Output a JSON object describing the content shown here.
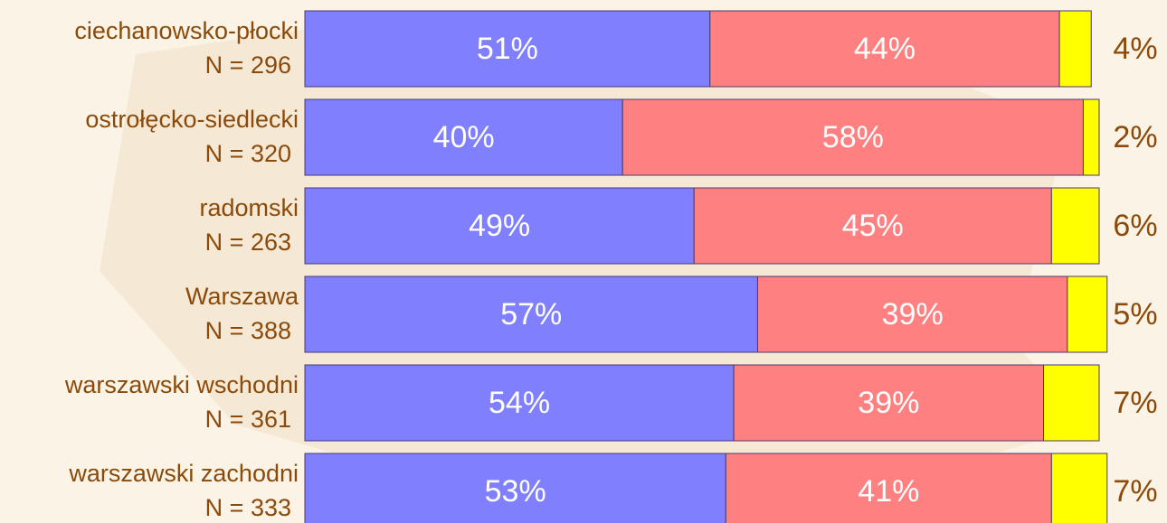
{
  "chart_data": {
    "type": "stacked-bar-horizontal",
    "categories": [
      [
        "ciechanowsko-płocki",
        "N = 296"
      ],
      [
        "ostrołęcko-siedlecki",
        "N = 320"
      ],
      [
        "radomski",
        "N = 263"
      ],
      [
        "Warszawa",
        "N = 388"
      ],
      [
        "warszawski wschodni",
        "N = 361"
      ],
      [
        "warszawski zachodni",
        "N = 333"
      ]
    ],
    "series": [
      {
        "color": "#8080ff",
        "values": [
          51,
          40,
          49,
          57,
          54,
          53
        ],
        "value_labels": [
          "51%",
          "40%",
          "49%",
          "57%",
          "54%",
          "53%"
        ]
      },
      {
        "color": "#ff8080",
        "values": [
          44,
          58,
          45,
          39,
          39,
          41
        ],
        "value_labels": [
          "44%",
          "58%",
          "45%",
          "39%",
          "39%",
          "41%"
        ]
      },
      {
        "color": "#ffff00",
        "values": [
          4,
          2,
          6,
          5,
          7,
          7
        ],
        "value_labels": [
          "4%",
          "2%",
          "6%",
          "5%",
          "7%",
          "7%"
        ]
      }
    ],
    "xlim": [
      0,
      100
    ]
  }
}
